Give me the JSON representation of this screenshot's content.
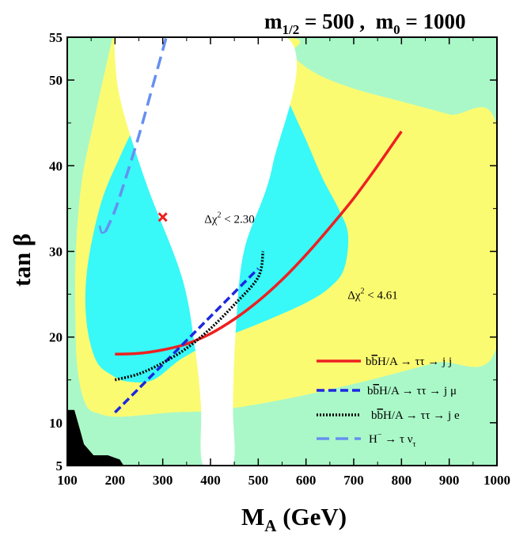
{
  "chart_data": {
    "type": "contour",
    "title": {
      "m_half_sym": "m",
      "m_half_sub": "1/2",
      "m_half_val": " = 500 ,  ",
      "m0_sym": "m",
      "m0_sub": "0",
      "m0_val": " = 1000"
    },
    "xlabel": {
      "main": "M",
      "sub": "A",
      "units": " (GeV)"
    },
    "ylabel": {
      "main": "tan ",
      "greek": "β"
    },
    "xlim": [
      100,
      1000
    ],
    "ylim": [
      5,
      55
    ],
    "xticks": [
      100,
      200,
      300,
      400,
      500,
      600,
      700,
      800,
      900,
      1000
    ],
    "yticks": [
      5,
      10,
      20,
      30,
      40,
      50,
      55
    ],
    "colors": {
      "background_region": "#aaf8c8",
      "region_4_61": "#fbfb72",
      "region_2_30": "#38f8f8",
      "excluded_white": "#ffffff",
      "excluded_black": "#000000",
      "jj": "#ee2020",
      "jmu": "#1c28e0",
      "je": "#000000",
      "htaunu": "#6690f0",
      "best_fit": "#ee2020"
    },
    "regions": [
      {
        "name": "chi2 < 4.61",
        "polygon": [
          [
            195,
            55
          ],
          [
            155,
            45
          ],
          [
            130,
            38
          ],
          [
            118,
            30
          ],
          [
            117,
            22
          ],
          [
            122,
            16
          ],
          [
            140,
            12
          ],
          [
            170,
            11
          ],
          [
            205,
            10.7
          ],
          [
            260,
            10.9
          ],
          [
            320,
            11.2
          ],
          [
            420,
            11.5
          ],
          [
            560,
            12.8
          ],
          [
            720,
            14.8
          ],
          [
            870,
            17
          ],
          [
            1000,
            19
          ],
          [
            1000,
            44.5
          ],
          [
            900,
            46
          ],
          [
            800,
            47.5
          ],
          [
            700,
            49
          ],
          [
            620,
            50.8
          ],
          [
            570,
            53
          ],
          [
            560,
            55
          ]
        ]
      },
      {
        "name": "chi2 < 2.30",
        "polygon": [
          [
            296,
            49
          ],
          [
            255,
            46
          ],
          [
            210,
            41
          ],
          [
            170,
            35.5
          ],
          [
            142,
            28
          ],
          [
            140,
            22
          ],
          [
            160,
            17.3
          ],
          [
            195,
            15.5
          ],
          [
            228,
            14.8
          ],
          [
            280,
            15
          ],
          [
            340,
            17.5
          ],
          [
            410,
            19.5
          ],
          [
            520,
            22
          ],
          [
            600,
            24
          ],
          [
            650,
            25.8
          ],
          [
            680,
            28
          ],
          [
            688,
            32
          ],
          [
            668,
            35
          ],
          [
            635,
            38.5
          ],
          [
            600,
            43
          ],
          [
            560,
            48
          ],
          [
            540,
            51.5
          ],
          [
            560,
            55
          ],
          [
            570,
            55
          ]
        ]
      },
      {
        "name": "excluded",
        "polygon": [
          [
            198,
            55
          ],
          [
            210,
            48
          ],
          [
            265,
            38
          ],
          [
            340,
            27
          ],
          [
            368,
            18.5
          ],
          [
            380,
            12
          ],
          [
            385,
            5
          ],
          [
            446,
            5
          ],
          [
            447,
            12
          ],
          [
            452,
            20
          ],
          [
            470,
            30
          ],
          [
            530,
            40
          ],
          [
            560,
            55
          ]
        ]
      },
      {
        "name": "black excluded",
        "polygon": [
          [
            100,
            5
          ],
          [
            100,
            11.5
          ],
          [
            115,
            11.5
          ],
          [
            125,
            9.5
          ],
          [
            135,
            7.5
          ],
          [
            155,
            6.2
          ],
          [
            185,
            6.2
          ],
          [
            210,
            5.7
          ],
          [
            218,
            5
          ]
        ]
      }
    ],
    "series": [
      {
        "name": "jj",
        "label": {
          "lead": "b",
          "bar": "b",
          "body": "H/A → ττ → j j"
        },
        "style": "solid",
        "points": [
          [
            200,
            18
          ],
          [
            250,
            18.1
          ],
          [
            300,
            18.5
          ],
          [
            350,
            19.2
          ],
          [
            400,
            20.4
          ],
          [
            450,
            22.1
          ],
          [
            500,
            24.2
          ],
          [
            550,
            26.7
          ],
          [
            600,
            29.6
          ],
          [
            650,
            32.8
          ],
          [
            700,
            36.2
          ],
          [
            750,
            40
          ],
          [
            800,
            44
          ]
        ]
      },
      {
        "name": "jmu",
        "label": {
          "lead": "b",
          "bar": "b",
          "body": "H/A → ττ → j μ"
        },
        "style": "dashed",
        "points": [
          [
            200,
            11.2
          ],
          [
            250,
            14
          ],
          [
            300,
            16.8
          ],
          [
            350,
            19.6
          ],
          [
            400,
            22.4
          ],
          [
            450,
            25.2
          ],
          [
            500,
            28
          ]
        ]
      },
      {
        "name": "je",
        "label": {
          "lead": "b",
          "bar": "b",
          "body": "H/A → ττ → j e"
        },
        "style": "dotted",
        "points": [
          [
            200,
            15
          ],
          [
            250,
            15.7
          ],
          [
            300,
            17
          ],
          [
            350,
            18.7
          ],
          [
            400,
            21
          ],
          [
            450,
            23.8
          ],
          [
            500,
            27
          ],
          [
            510,
            30
          ]
        ]
      },
      {
        "name": "htaunu",
        "label": {
          "lead": "H",
          "sup": "−",
          "body": " → τ ν",
          "sub": "τ"
        },
        "style": "longdash",
        "points": [
          [
            180,
            32.3
          ],
          [
            200,
            34.8
          ],
          [
            225,
            39
          ],
          [
            250,
            43.5
          ],
          [
            275,
            48.5
          ],
          [
            300,
            53.5
          ],
          [
            312,
            56
          ]
        ]
      },
      {
        "name": "htaunu-hook",
        "style": "solid",
        "points": [
          [
            180,
            32.3
          ],
          [
            172,
            32.2
          ],
          [
            168,
            33
          ]
        ]
      }
    ],
    "best_fit": {
      "x": 300,
      "y": 34
    },
    "annotations": [
      {
        "name": "chi2-230",
        "x": 470,
        "y": 33.8,
        "parts": {
          "pre": "Δχ",
          "sup": "2",
          "post": " < 2.30"
        }
      },
      {
        "name": "chi2-461",
        "x": 770,
        "y": 24.9,
        "parts": {
          "pre": "Δχ",
          "sup": "2",
          "post": " < 4.61"
        }
      }
    ]
  }
}
